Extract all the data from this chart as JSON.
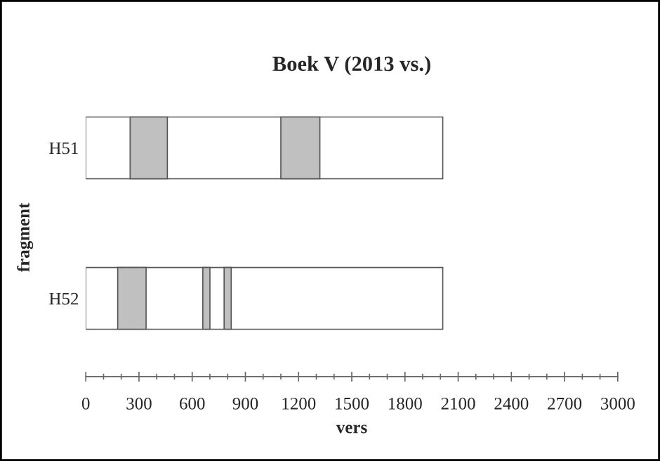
{
  "chart_data": {
    "type": "bar",
    "orientation": "horizontal",
    "title": "Boek V (2013 vs.)",
    "xlabel": "vers",
    "ylabel": "fragment",
    "categories": [
      "H51",
      "H52"
    ],
    "series": [
      {
        "color": "#ffffff",
        "base": [
          0,
          0
        ],
        "values": [
          2013,
          2013
        ]
      },
      {
        "color": "#c0c0c0",
        "base": [
          250,
          180
        ],
        "values": [
          210,
          160
        ]
      },
      {
        "color": "#c0c0c0",
        "base": [
          1100,
          660
        ],
        "values": [
          220,
          40
        ]
      },
      {
        "color": "#c0c0c0",
        "base": [
          null,
          780
        ],
        "values": [
          null,
          40
        ]
      }
    ],
    "xlim": [
      0,
      3000
    ],
    "xticks": [
      0,
      {
        "value": 100,
        "label": null
      },
      {
        "value": 200,
        "label": null
      },
      300,
      {
        "value": 400,
        "label": null
      },
      {
        "value": 500,
        "label": null
      },
      600,
      {
        "value": 700,
        "label": null
      },
      {
        "value": 800,
        "label": null
      },
      900,
      {
        "value": 1000,
        "label": null
      },
      {
        "value": 1100,
        "label": null
      },
      1200,
      {
        "value": 1300,
        "label": null
      },
      {
        "value": 1400,
        "label": null
      },
      1500,
      {
        "value": 1600,
        "label": null
      },
      {
        "value": 1700,
        "label": null
      },
      1800,
      {
        "value": 1900,
        "label": null
      },
      {
        "value": 2000,
        "label": null
      },
      2100,
      {
        "value": 2200,
        "label": null
      },
      {
        "value": 2300,
        "label": null
      },
      2400,
      {
        "value": 2500,
        "label": null
      },
      {
        "value": 2600,
        "label": null
      },
      2700,
      {
        "value": 2800,
        "label": null
      },
      {
        "value": 2900,
        "label": null
      },
      3000
    ],
    "grid": false,
    "legend": false
  }
}
